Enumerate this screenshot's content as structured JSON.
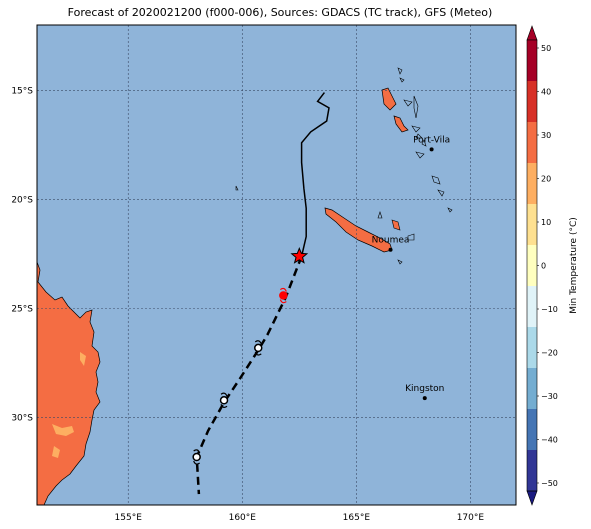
{
  "title": "Forecast of 2020021200 (f000-006), Sources: GDACS (TC track), GFS (Meteo)",
  "map": {
    "lon_range": [
      151.0,
      172.0
    ],
    "lat_range": [
      -34.0,
      -12.0
    ],
    "lon_ticks": [
      {
        "value": 155,
        "label": "155°E"
      },
      {
        "value": 160,
        "label": "160°E"
      },
      {
        "value": 165,
        "label": "165°E"
      },
      {
        "value": 170,
        "label": "170°E"
      }
    ],
    "lat_ticks": [
      {
        "value": -15,
        "label": "15°S"
      },
      {
        "value": -20,
        "label": "20°S"
      },
      {
        "value": -25,
        "label": "25°S"
      },
      {
        "value": -30,
        "label": "30°S"
      }
    ],
    "ocean_color": "#8fb4d9",
    "land_color": "#f46d43",
    "grid": true
  },
  "cities": [
    {
      "name": "Port-Vila",
      "lon": 168.3,
      "lat": -17.7
    },
    {
      "name": "Noumea",
      "lon": 166.5,
      "lat": -22.3
    },
    {
      "name": "Kingston",
      "lon": 168.0,
      "lat": -29.1
    }
  ],
  "track_observed": [
    [
      163.6,
      -15.1
    ],
    [
      163.3,
      -15.5
    ],
    [
      163.8,
      -15.8
    ],
    [
      163.7,
      -16.4
    ],
    [
      163.0,
      -16.9
    ],
    [
      162.6,
      -17.4
    ],
    [
      162.6,
      -18.3
    ],
    [
      162.7,
      -19.5
    ],
    [
      162.8,
      -20.4
    ],
    [
      162.8,
      -21.7
    ],
    [
      162.6,
      -22.6
    ]
  ],
  "track_forecast": [
    [
      162.6,
      -22.6
    ],
    [
      161.9,
      -24.5
    ],
    [
      161.1,
      -26.2
    ],
    [
      160.7,
      -26.9
    ],
    [
      159.9,
      -28.2
    ],
    [
      159.2,
      -29.3
    ],
    [
      158.5,
      -30.6
    ],
    [
      158.0,
      -31.8
    ],
    [
      158.1,
      -33.5
    ]
  ],
  "current_position": {
    "lon": 162.5,
    "lat": -22.6
  },
  "forecast_symbols": [
    {
      "lon": 161.8,
      "lat": -24.4,
      "color": "#ff0000"
    },
    {
      "lon": 160.7,
      "lat": -26.8,
      "color": "#000000"
    },
    {
      "lon": 159.2,
      "lat": -29.2,
      "color": "#000000"
    },
    {
      "lon": 158.0,
      "lat": -31.8,
      "color": "#000000"
    }
  ],
  "colorbar": {
    "label": "Min Temperature (°C)",
    "ticks": [
      "50",
      "40",
      "30",
      "20",
      "10",
      "0",
      "−10",
      "−20",
      "−30",
      "−40",
      "−50"
    ],
    "colors": [
      "#a50026",
      "#d73027",
      "#f46d43",
      "#fdae61",
      "#fee090",
      "#ffffbf",
      "#e0f3f8",
      "#abd9e9",
      "#74add1",
      "#4575b4",
      "#313695",
      "#1a1a80"
    ]
  }
}
